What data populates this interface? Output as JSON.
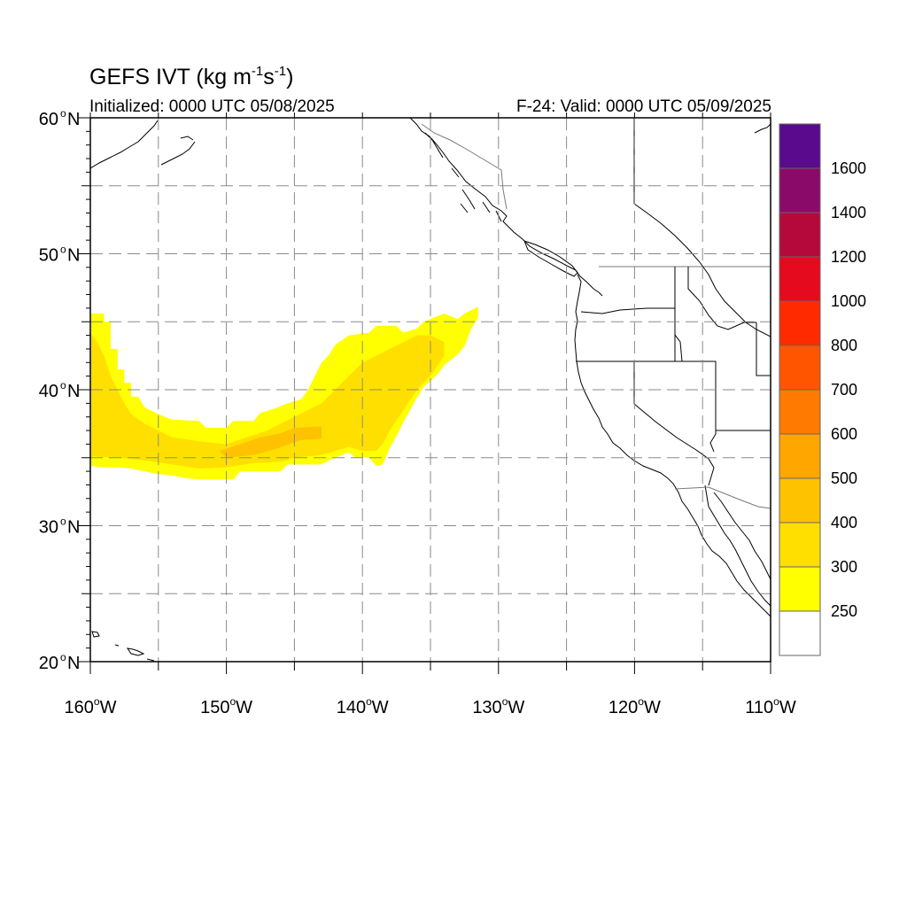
{
  "map": {
    "title_prefix": "GEFS IVT (kg m",
    "title_exp1": "-1",
    "title_mid": "s",
    "title_exp2": "-1",
    "title_suffix": ")",
    "init_label": "Initialized: 0000 UTC 05/08/2025",
    "valid_label": "F-24: Valid: 0000 UTC 05/09/2025",
    "lon_range": [
      -160,
      -110
    ],
    "lat_range": [
      20,
      60
    ]
  },
  "axes": {
    "lat_ticks": [
      {
        "value": 60,
        "num": "60",
        "hemi": "N"
      },
      {
        "value": 50,
        "num": "50",
        "hemi": "N"
      },
      {
        "value": 40,
        "num": "40",
        "hemi": "N"
      },
      {
        "value": 30,
        "num": "30",
        "hemi": "N"
      },
      {
        "value": 20,
        "num": "20",
        "hemi": "N"
      }
    ],
    "lon_ticks": [
      {
        "value": -160,
        "num": "160",
        "hemi": "W"
      },
      {
        "value": -150,
        "num": "150",
        "hemi": "W"
      },
      {
        "value": -140,
        "num": "140",
        "hemi": "W"
      },
      {
        "value": -130,
        "num": "130",
        "hemi": "W"
      },
      {
        "value": -120,
        "num": "120",
        "hemi": "W"
      },
      {
        "value": -110,
        "num": "110",
        "hemi": "W"
      }
    ],
    "grid_lons": [
      -155,
      -150,
      -145,
      -140,
      -135,
      -130,
      -125,
      -120,
      -115
    ],
    "grid_lats": [
      25,
      30,
      35,
      40,
      45,
      50,
      55
    ],
    "grid": true
  },
  "colorbar": {
    "placement": "right",
    "labels": [
      "1600",
      "1400",
      "1200",
      "1000",
      "800",
      "700",
      "600",
      "500",
      "400",
      "300",
      "250"
    ],
    "bins_top_to_bottom": [
      {
        "color": "#5a0a8c",
        "label": ""
      },
      {
        "color": "#8a0a6a",
        "label": "1600"
      },
      {
        "color": "#b5093c",
        "label": "1400"
      },
      {
        "color": "#e50a1e",
        "label": "1200"
      },
      {
        "color": "#ff2a00",
        "label": "1000"
      },
      {
        "color": "#ff5500",
        "label": "800"
      },
      {
        "color": "#ff7a00",
        "label": "700"
      },
      {
        "color": "#ffa600",
        "label": "600"
      },
      {
        "color": "#ffc200",
        "label": "500"
      },
      {
        "color": "#ffdf00",
        "label": "400"
      },
      {
        "color": "#ffff00",
        "label": "300"
      },
      {
        "color": "#ffffff",
        "label": "250"
      }
    ]
  },
  "ivt_field": {
    "levels": [
      {
        "range": "250-300",
        "color": "#ffff00",
        "outline": [
          [
            -160,
            45.6
          ],
          [
            -159,
            45.6
          ],
          [
            -159,
            45
          ],
          [
            -158.5,
            45
          ],
          [
            -158.5,
            43
          ],
          [
            -158,
            43
          ],
          [
            -158,
            41.5
          ],
          [
            -157.5,
            41.5
          ],
          [
            -157.5,
            40.5
          ],
          [
            -157,
            40.5
          ],
          [
            -157,
            39.5
          ],
          [
            -156.5,
            39.5
          ],
          [
            -156,
            38.7
          ],
          [
            -155,
            38.2
          ],
          [
            -154,
            37.8
          ],
          [
            -152,
            37.7
          ],
          [
            -151.5,
            37.2
          ],
          [
            -150,
            37.2
          ],
          [
            -149.5,
            37.7
          ],
          [
            -148,
            37.7
          ],
          [
            -147.5,
            38.3
          ],
          [
            -146.5,
            38.6
          ],
          [
            -145.5,
            39
          ],
          [
            -144.5,
            39.3
          ],
          [
            -144,
            40
          ],
          [
            -143.5,
            41
          ],
          [
            -143,
            42
          ],
          [
            -142.5,
            42.5
          ],
          [
            -142,
            43.3
          ],
          [
            -141,
            44
          ],
          [
            -139.5,
            44.2
          ],
          [
            -139,
            44.7
          ],
          [
            -137.5,
            44.7
          ],
          [
            -137,
            44.2
          ],
          [
            -136,
            44.5
          ],
          [
            -135.5,
            45
          ],
          [
            -134,
            45.6
          ],
          [
            -133,
            45.2
          ],
          [
            -132.5,
            45.6
          ],
          [
            -131.5,
            46.1
          ],
          [
            -131.5,
            45.3
          ],
          [
            -132,
            44.5
          ],
          [
            -132.5,
            43.2
          ],
          [
            -133,
            42.6
          ],
          [
            -134,
            41.8
          ],
          [
            -134.5,
            41.1
          ],
          [
            -135.5,
            40.2
          ],
          [
            -136,
            39.4
          ],
          [
            -136.5,
            38.5
          ],
          [
            -137,
            37.6
          ],
          [
            -137.5,
            36.6
          ],
          [
            -138,
            35.7
          ],
          [
            -138.5,
            34.5
          ],
          [
            -139,
            34.4
          ],
          [
            -139.5,
            35
          ],
          [
            -140.5,
            35
          ],
          [
            -141,
            35.4
          ],
          [
            -142.5,
            34.8
          ],
          [
            -143,
            34.5
          ],
          [
            -145.5,
            34.5
          ],
          [
            -146,
            34
          ],
          [
            -149,
            34
          ],
          [
            -149.5,
            33.4
          ],
          [
            -152,
            33.4
          ],
          [
            -153,
            33.5
          ],
          [
            -154,
            33.7
          ],
          [
            -155,
            33.8
          ],
          [
            -156,
            34
          ],
          [
            -157,
            34.2
          ],
          [
            -158,
            34.3
          ],
          [
            -159,
            34.3
          ],
          [
            -160,
            34.4
          ]
        ]
      },
      {
        "range": "300-400",
        "color": "#ffdf00",
        "outline": [
          [
            -160,
            44.2
          ],
          [
            -159.5,
            43.5
          ],
          [
            -159,
            42.5
          ],
          [
            -158.5,
            41
          ],
          [
            -158,
            40
          ],
          [
            -157.5,
            39
          ],
          [
            -157,
            38.2
          ],
          [
            -156,
            37.5
          ],
          [
            -155,
            37
          ],
          [
            -154,
            36.5
          ],
          [
            -152,
            36.2
          ],
          [
            -150,
            36
          ],
          [
            -148.5,
            36.5
          ],
          [
            -147,
            37
          ],
          [
            -146,
            37.5
          ],
          [
            -145,
            38
          ],
          [
            -144,
            38.5
          ],
          [
            -143,
            39
          ],
          [
            -142,
            40
          ],
          [
            -141,
            41
          ],
          [
            -140,
            42
          ],
          [
            -139,
            42.5
          ],
          [
            -138,
            43
          ],
          [
            -137,
            43.5
          ],
          [
            -136,
            44
          ],
          [
            -135,
            44
          ],
          [
            -134,
            43.5
          ],
          [
            -134,
            42.5
          ],
          [
            -135,
            41
          ],
          [
            -136,
            40
          ],
          [
            -137,
            38.5
          ],
          [
            -138,
            37
          ],
          [
            -138.5,
            36
          ],
          [
            -139,
            35.5
          ],
          [
            -140,
            35.5
          ],
          [
            -141,
            35.8
          ],
          [
            -142,
            35.5
          ],
          [
            -143,
            35.2
          ],
          [
            -145,
            35
          ],
          [
            -146,
            34.7
          ],
          [
            -148,
            34.6
          ],
          [
            -150,
            34.3
          ],
          [
            -152,
            34.2
          ],
          [
            -154,
            34.5
          ],
          [
            -156,
            34.8
          ],
          [
            -158,
            35
          ],
          [
            -160,
            35.1
          ]
        ]
      },
      {
        "range": "400-500",
        "color": "#ffc200",
        "outline": [
          [
            -150.5,
            35.5
          ],
          [
            -149,
            36
          ],
          [
            -147.5,
            36.5
          ],
          [
            -146,
            36.8
          ],
          [
            -145,
            37.2
          ],
          [
            -143,
            37.3
          ],
          [
            -143,
            36.4
          ],
          [
            -144.5,
            36.3
          ],
          [
            -146.5,
            35.6
          ],
          [
            -148,
            35.2
          ],
          [
            -150,
            35
          ]
        ]
      }
    ]
  }
}
